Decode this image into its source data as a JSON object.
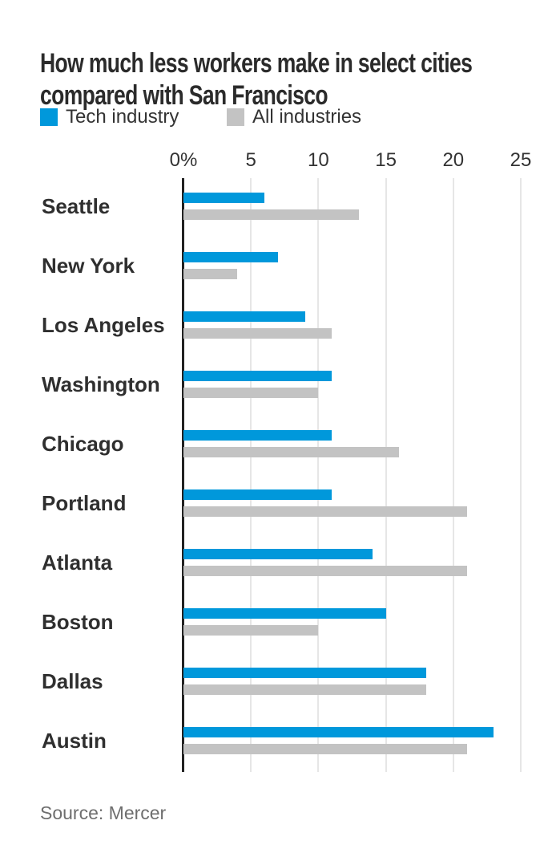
{
  "header": {
    "title": "How much less workers make in select cities compared with San Francisco",
    "title_lines": [
      "How much less workers make in select cities",
      "compared with San Francisco"
    ]
  },
  "legend": [
    {
      "label": "Tech industry",
      "color": "#0098DB"
    },
    {
      "label": "All industries",
      "color": "#C3C3C3"
    }
  ],
  "source": "Source: Mercer",
  "chart_data": {
    "type": "bar",
    "orientation": "horizontal",
    "title": "How much less workers make in select cities compared with San Francisco",
    "categories": [
      "Seattle",
      "New York",
      "Los Angeles",
      "Washington",
      "Chicago",
      "Portland",
      "Atlanta",
      "Boston",
      "Dallas",
      "Austin"
    ],
    "series": [
      {
        "name": "Tech industry",
        "color": "#0098DB",
        "values": [
          6,
          7,
          9,
          11,
          11,
          11,
          14,
          15,
          18,
          23
        ]
      },
      {
        "name": "All industries",
        "color": "#C3C3C3",
        "values": [
          13,
          4,
          11,
          10,
          16,
          21,
          21,
          10,
          18,
          21
        ]
      }
    ],
    "x_axis": {
      "unit": "%",
      "ticks": [
        0,
        5,
        10,
        15,
        20,
        25
      ],
      "tick_labels": [
        "0%",
        "5",
        "10",
        "15",
        "20",
        "25"
      ],
      "range": [
        0,
        25
      ]
    },
    "grid": true,
    "legend_position": "top-left"
  },
  "colors": {
    "tech_bar": "#0098DB",
    "all_bar": "#C3C3C3",
    "gridline": "#E6E6E6",
    "zero_axis_line": "#222222",
    "title_text": "#2B2B2B",
    "label_text": "#2F2F2F",
    "source_text": "#6E6E6E",
    "background": "#FFFFFF"
  }
}
